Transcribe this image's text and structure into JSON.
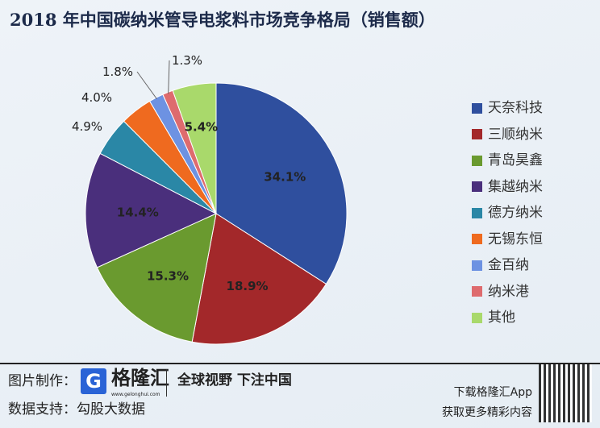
{
  "chart_data": {
    "type": "pie",
    "title": "2018 年中国碳纳米管导电浆料市场竞争格局（销售额）",
    "legend_position": "right",
    "slices": [
      {
        "name": "天奈科技",
        "value": 34.1,
        "label": "34.1%",
        "color": "#2f4f9e"
      },
      {
        "name": "三顺纳米",
        "value": 18.9,
        "label": "18.9%",
        "color": "#a3282a"
      },
      {
        "name": "青岛昊鑫",
        "value": 15.3,
        "label": "15.3%",
        "color": "#6a9a2f"
      },
      {
        "name": "集越纳米",
        "value": 14.4,
        "label": "14.4%",
        "color": "#4a2f7c"
      },
      {
        "name": "德方纳米",
        "value": 4.9,
        "label": "4.9%",
        "color": "#2a87a6"
      },
      {
        "name": "无锡东恒",
        "value": 4.0,
        "label": "4.0%",
        "color": "#ef6a1f"
      },
      {
        "name": "金百纳",
        "value": 1.8,
        "label": "1.8%",
        "color": "#6d92e2"
      },
      {
        "name": "纳米港",
        "value": 1.3,
        "label": "1.3%",
        "color": "#de6b6e"
      },
      {
        "name": "其他",
        "value": 5.4,
        "label": "5.4%",
        "color": "#a9d96b"
      }
    ]
  },
  "footer": {
    "made_by": "图片制作：",
    "brand": "格隆汇",
    "url": "www.gelonghui.com",
    "slogan": "全球视野 下注中国",
    "data_by": "数据支持：勾股大数据",
    "app_line1": "下载格隆汇App",
    "app_line2": "获取更多精彩内容",
    "logo_letter": "G"
  }
}
